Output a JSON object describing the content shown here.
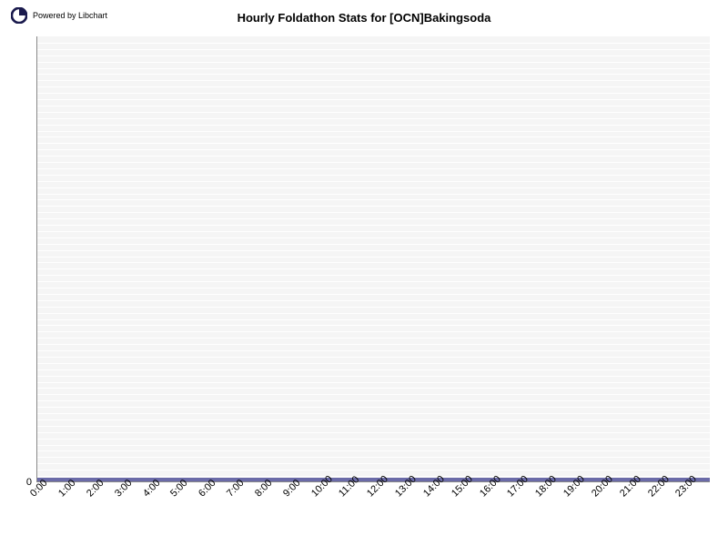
{
  "header": {
    "powered_by": "Powered by\nLibchart",
    "title": "Hourly Foldathon Stats for [OCN]Bakingsoda"
  },
  "chart": {
    "type": "bar",
    "plot_background": "#f5f5f5",
    "gridline_color": "#ffffff",
    "axis_color": "#888888",
    "bar_color": "#6b6ba8",
    "gridline_count": 70,
    "x_categories": [
      "0:00",
      "1:00",
      "2:00",
      "3:00",
      "4:00",
      "5:00",
      "6:00",
      "7:00",
      "8:00",
      "9:00",
      "10:00",
      "11:00",
      "12:00",
      "13:00",
      "14:00",
      "15:00",
      "16:00",
      "17:00",
      "18:00",
      "19:00",
      "20:00",
      "21:00",
      "22:00",
      "23:00"
    ],
    "y_values": [
      0,
      0,
      0,
      0,
      0,
      0,
      0,
      0,
      0,
      0,
      0,
      0,
      0,
      0,
      0,
      0,
      0,
      0,
      0,
      0,
      0,
      0,
      0,
      0
    ],
    "y_ticks": [
      0
    ],
    "x_label_fontsize": 11,
    "y_label_fontsize": 11,
    "title_fontsize": 13,
    "x_label_rotation": -45,
    "ylim": [
      0,
      1
    ]
  }
}
